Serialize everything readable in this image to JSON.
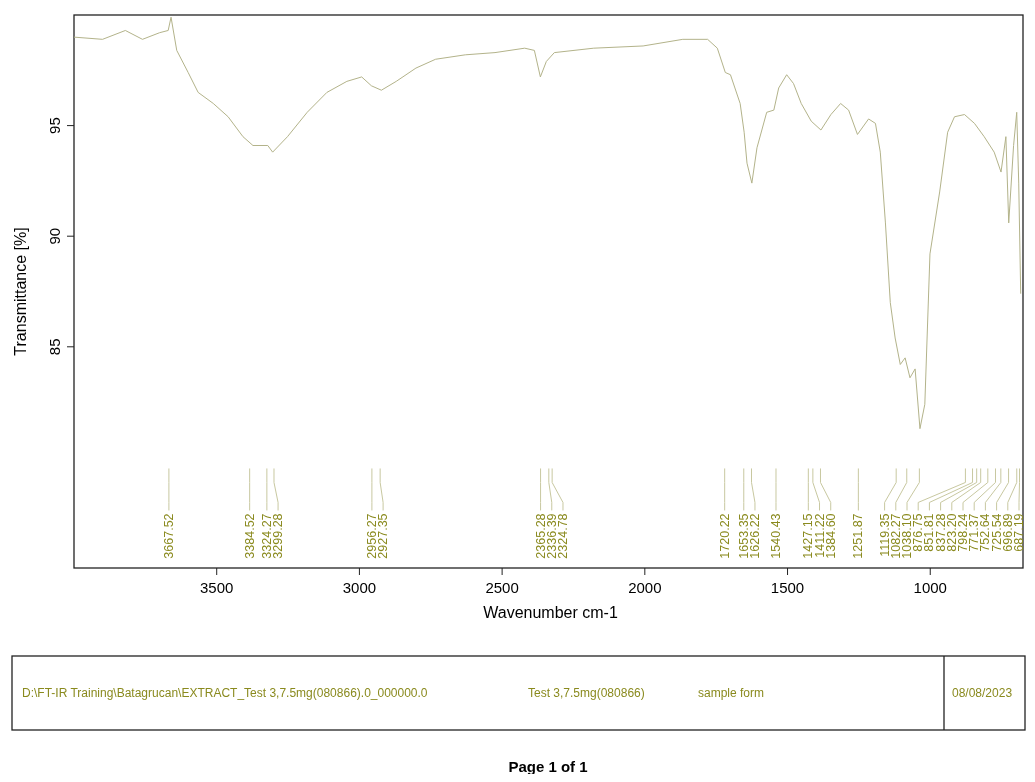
{
  "chart_data": {
    "type": "line",
    "xlabel": "Wavenumber cm-1",
    "ylabel": "Transmittance [%]",
    "xlim": [
      4000,
      675
    ],
    "ylim": [
      75,
      100
    ],
    "xticks": [
      3500,
      3000,
      2500,
      2000,
      1500,
      1000
    ],
    "yticks": [
      85,
      90,
      95
    ],
    "grid": false,
    "marker": "none",
    "line_style": "solid",
    "series": [
      {
        "color": "#b3b38a",
        "x": [
          4000,
          3900,
          3820,
          3760,
          3700,
          3670,
          3660,
          3640,
          3600,
          3565,
          3512,
          3460,
          3408,
          3373,
          3321,
          3304,
          3252,
          3183,
          3114,
          3044,
          2992,
          2958,
          2923,
          2871,
          2802,
          2733,
          2629,
          2525,
          2421,
          2387,
          2366,
          2345,
          2317,
          2179,
          2006,
          1867,
          1780,
          1746,
          1718,
          1700,
          1666,
          1652,
          1642,
          1625,
          1607,
          1573,
          1548,
          1531,
          1503,
          1479,
          1452,
          1417,
          1383,
          1348,
          1314,
          1286,
          1255,
          1216,
          1192,
          1175,
          1157,
          1140,
          1123,
          1105,
          1088,
          1071,
          1053,
          1036,
          1019,
          1001,
          967,
          939,
          915,
          880,
          845,
          811,
          776,
          752,
          735,
          725,
          708,
          697,
          690,
          683
        ],
        "values": [
          99.0,
          98.9,
          99.3,
          98.9,
          99.2,
          99.3,
          99.9,
          98.4,
          97.4,
          96.5,
          96.0,
          95.4,
          94.5,
          94.1,
          94.1,
          93.8,
          94.5,
          95.6,
          96.5,
          97.0,
          97.2,
          96.8,
          96.6,
          97.0,
          97.6,
          98.0,
          98.2,
          98.3,
          98.5,
          98.4,
          97.2,
          97.9,
          98.3,
          98.5,
          98.6,
          98.9,
          98.9,
          98.5,
          97.4,
          97.3,
          96.0,
          94.7,
          93.3,
          92.4,
          94.0,
          95.6,
          95.7,
          96.7,
          97.3,
          96.9,
          96.0,
          95.2,
          94.8,
          95.5,
          96.0,
          95.7,
          94.6,
          95.3,
          95.1,
          93.8,
          90.6,
          87.0,
          85.4,
          84.2,
          84.5,
          83.6,
          84.0,
          81.3,
          82.4,
          89.2,
          92.0,
          94.7,
          95.4,
          95.5,
          95.1,
          94.5,
          93.8,
          92.9,
          94.5,
          90.6,
          94.1,
          95.6,
          92.4,
          87.4
        ]
      }
    ],
    "annotations": [
      "3667.52",
      "3384.52",
      "3324.27",
      "3299.28",
      "2956.27",
      "2927.35",
      "2365.28",
      "2336.39",
      "2324.78",
      "1720.22",
      "1653.35",
      "1626.22",
      "1540.43",
      "1427.15",
      "1411.22",
      "1384.60",
      "1251.87",
      "1119.35",
      "1082.27",
      "1038.10",
      "876.75",
      "851.81",
      "837.28",
      "823.20",
      "798.24",
      "771.37",
      "752.64",
      "725.54",
      "696.89",
      "687.19",
      "D:\\FT-IR Training\\Batagrucan\\EXTRACT_Test 3,7.5mg(080866).0_000000.0",
      "Test 3,7.5mg(080866)",
      "sample form",
      "08/08/2023",
      "Page 1 of 1"
    ]
  }
}
